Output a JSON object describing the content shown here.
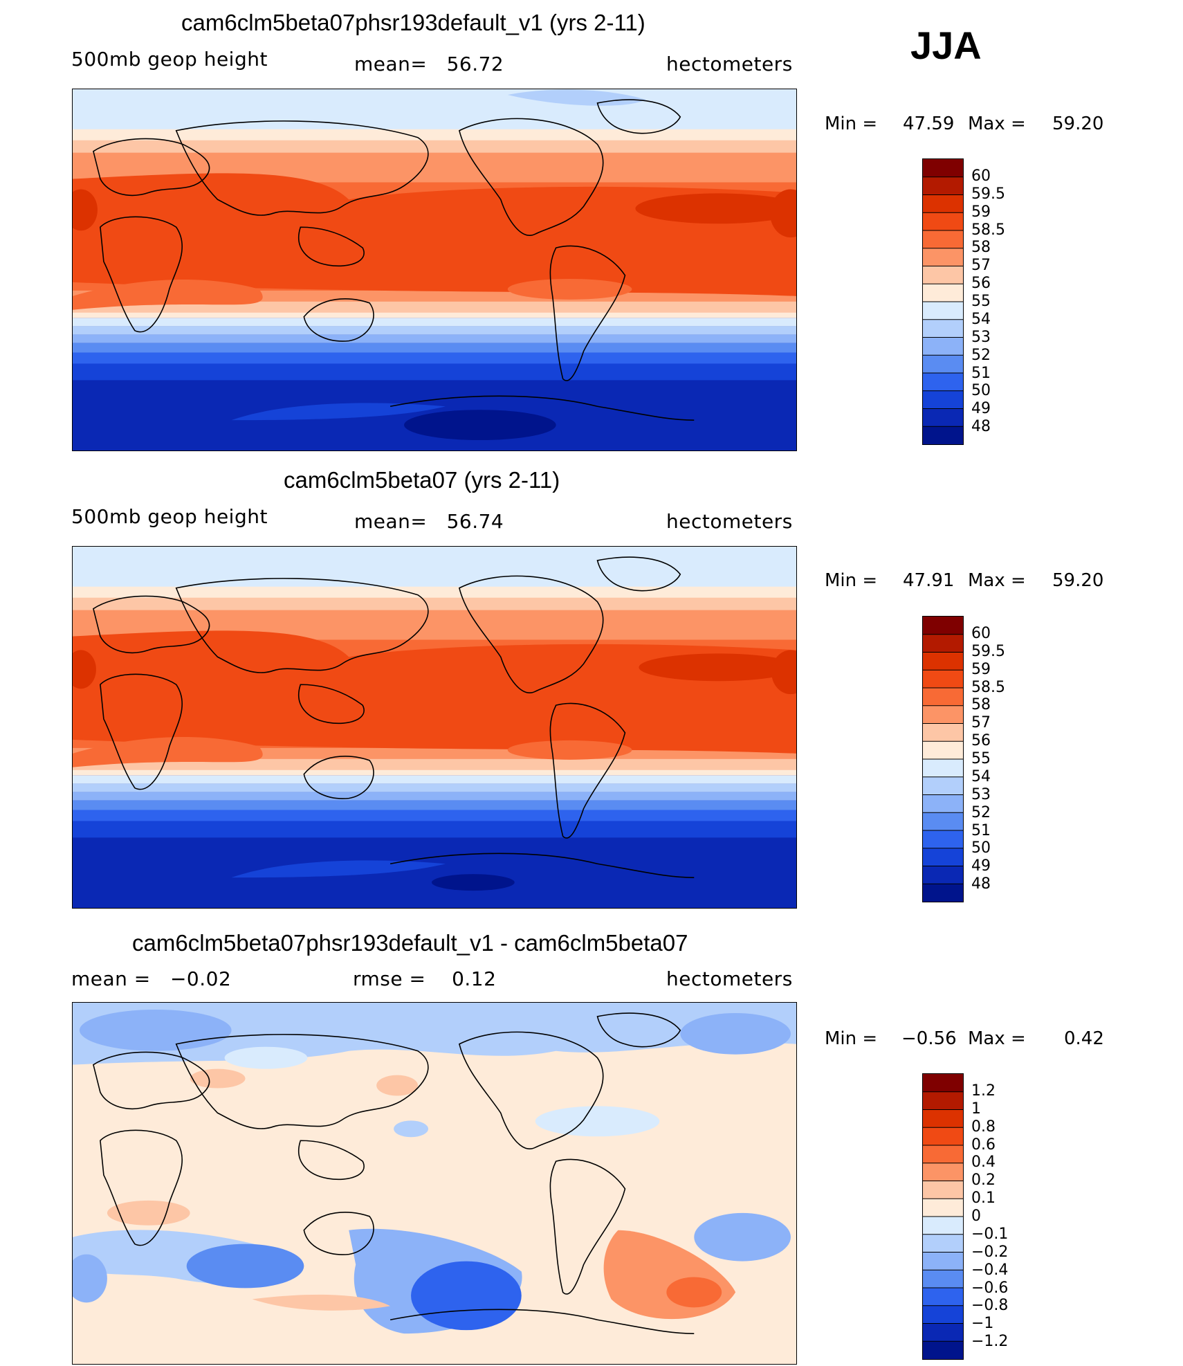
{
  "season": "JJA",
  "panels": [
    {
      "title": "cam6clm5beta07phsr193default_v1 (yrs 2-11)",
      "left_label": "500mb geop height",
      "center_label": "mean=   56.72",
      "right_label": "hectometers",
      "min_label": "Min =",
      "min_value": "47.59",
      "max_label": "Max =",
      "max_value": "59.20",
      "colorbar": {
        "colors": [
          "#7f0000",
          "#b31a00",
          "#dc3200",
          "#f04a14",
          "#f86a35",
          "#fc9466",
          "#fdc6a6",
          "#feebd9",
          "#d9ebfd",
          "#b2cffb",
          "#8cb2f8",
          "#5a8cf2",
          "#2e63ee",
          "#1543d8",
          "#0a28b4",
          "#00148c"
        ],
        "labels": [
          "60",
          "59.5",
          "59",
          "58.5",
          "58",
          "57",
          "56",
          "55",
          "54",
          "53",
          "52",
          "51",
          "50",
          "49",
          "48"
        ]
      }
    },
    {
      "title": "cam6clm5beta07 (yrs 2-11)",
      "left_label": "500mb geop height",
      "center_label": "mean=   56.74",
      "right_label": "hectometers",
      "min_label": "Min =",
      "min_value": "47.91",
      "max_label": "Max =",
      "max_value": "59.20",
      "colorbar": {
        "colors": [
          "#7f0000",
          "#b31a00",
          "#dc3200",
          "#f04a14",
          "#f86a35",
          "#fc9466",
          "#fdc6a6",
          "#feebd9",
          "#d9ebfd",
          "#b2cffb",
          "#8cb2f8",
          "#5a8cf2",
          "#2e63ee",
          "#1543d8",
          "#0a28b4",
          "#00148c"
        ],
        "labels": [
          "60",
          "59.5",
          "59",
          "58.5",
          "58",
          "57",
          "56",
          "55",
          "54",
          "53",
          "52",
          "51",
          "50",
          "49",
          "48"
        ]
      }
    },
    {
      "title": "cam6clm5beta07phsr193default_v1 - cam6clm5beta07",
      "left_label": "mean =   −0.02",
      "center_label": "rmse =    0.12",
      "right_label": "hectometers",
      "min_label": "Min =",
      "min_value": "−0.56",
      "max_label": "Max =",
      "max_value": "0.42",
      "colorbar": {
        "colors": [
          "#7f0000",
          "#b31a00",
          "#dc3200",
          "#f04a14",
          "#f86a35",
          "#fc9466",
          "#fdc6a6",
          "#feebd9",
          "#d9ebfd",
          "#b2cffb",
          "#8cb2f8",
          "#5a8cf2",
          "#2e63ee",
          "#1543d8",
          "#0a28b4",
          "#00148c"
        ],
        "labels": [
          "1.2",
          "1",
          "0.8",
          "0.6",
          "0.4",
          "0.2",
          "0.1",
          "0",
          "−0.1",
          "−0.2",
          "−0.4",
          "−0.6",
          "−0.8",
          "−1",
          "−1.2"
        ]
      }
    }
  ]
}
